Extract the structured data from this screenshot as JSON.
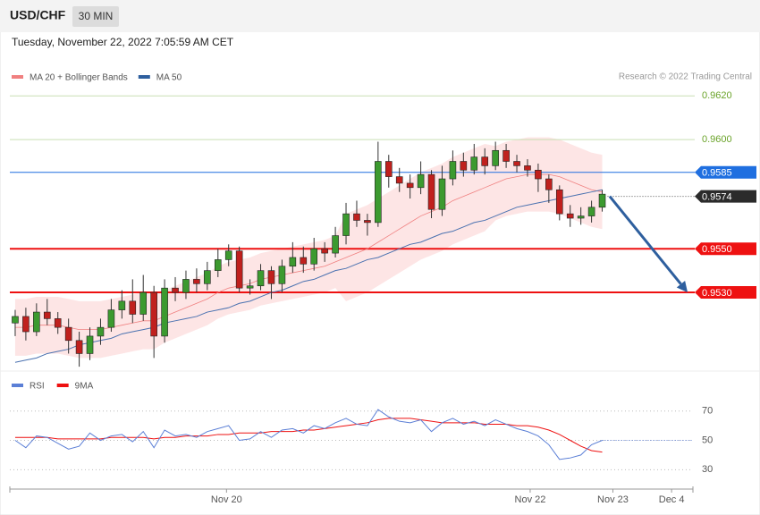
{
  "chart_data": {
    "type": "candlestick",
    "symbol": "USD/CHF",
    "interval": "30 MIN",
    "timestamp": "Tuesday, November 22, 2022 7:05:59 AM CET",
    "credit": "Research © 2022 Trading Central",
    "legend": [
      {
        "name": "MA 20 + Bollinger Bands",
        "color": "#f08080"
      },
      {
        "name": "MA 50",
        "color": "#2e5f9e"
      }
    ],
    "xlim": [
      -0.5,
      63.5
    ],
    "xticks": [
      {
        "value": 19.8,
        "label": "Nov 20"
      },
      {
        "value": 48.25,
        "label": "Nov 22"
      },
      {
        "value": 56,
        "label": "Nov 23"
      },
      {
        "value": 61.5,
        "label": "Dec 4"
      }
    ],
    "ylim": [
      0.9494,
      0.9625
    ],
    "up_color": "#3c9a2f",
    "down_color": "#c0201d",
    "open": [
      0.9516,
      0.9519,
      0.9512,
      0.9521,
      0.9518,
      0.9514,
      0.9508,
      0.9502,
      0.951,
      0.9514,
      0.9522,
      0.9526,
      0.952,
      0.953,
      0.951,
      0.9532,
      0.953,
      0.9536,
      0.9534,
      0.954,
      0.9545,
      0.9549,
      0.9532,
      0.9533,
      0.954,
      0.9534,
      0.9542,
      0.9546,
      0.9543,
      0.955,
      0.9548,
      0.9556,
      0.9566,
      0.9563,
      0.9562,
      0.959,
      0.9583,
      0.958,
      0.9578,
      0.9584,
      0.9568,
      0.9582,
      0.959,
      0.9586,
      0.9592,
      0.9588,
      0.9595,
      0.959,
      0.9588,
      0.9586,
      0.9582,
      0.9577,
      0.9566,
      0.9564,
      0.9565,
      0.9569
    ],
    "high": [
      0.9522,
      0.9523,
      0.9525,
      0.9527,
      0.9521,
      0.9518,
      0.9512,
      0.9514,
      0.9518,
      0.9527,
      0.9531,
      0.9536,
      0.9538,
      0.9533,
      0.9536,
      0.9537,
      0.954,
      0.9541,
      0.9544,
      0.955,
      0.9552,
      0.9551,
      0.9536,
      0.9543,
      0.9542,
      0.9545,
      0.9553,
      0.9551,
      0.9555,
      0.9553,
      0.956,
      0.9571,
      0.9572,
      0.9566,
      0.9599,
      0.9593,
      0.9587,
      0.9584,
      0.959,
      0.9586,
      0.9588,
      0.9595,
      0.9594,
      0.9598,
      0.9596,
      0.9599,
      0.9598,
      0.9593,
      0.9591,
      0.9589,
      0.9584,
      0.9579,
      0.957,
      0.9569,
      0.9572,
      0.9577
    ],
    "low": [
      0.951,
      0.9508,
      0.951,
      0.9515,
      0.9511,
      0.9502,
      0.9496,
      0.9499,
      0.9506,
      0.9512,
      0.9518,
      0.9516,
      0.9517,
      0.95,
      0.9507,
      0.9526,
      0.9527,
      0.953,
      0.9531,
      0.9537,
      0.9542,
      0.953,
      0.9529,
      0.9531,
      0.9527,
      0.953,
      0.9539,
      0.9539,
      0.954,
      0.9544,
      0.9546,
      0.9552,
      0.956,
      0.9556,
      0.956,
      0.9578,
      0.9576,
      0.9573,
      0.9575,
      0.9564,
      0.9565,
      0.9579,
      0.9583,
      0.9584,
      0.9584,
      0.9586,
      0.9587,
      0.9585,
      0.9583,
      0.9576,
      0.9571,
      0.9563,
      0.956,
      0.9561,
      0.9562,
      0.9567
    ],
    "close": [
      0.9519,
      0.9512,
      0.9521,
      0.9518,
      0.9514,
      0.9508,
      0.9502,
      0.951,
      0.9514,
      0.9522,
      0.9526,
      0.952,
      0.953,
      0.951,
      0.9532,
      0.953,
      0.9536,
      0.9534,
      0.954,
      0.9545,
      0.9549,
      0.9532,
      0.9533,
      0.954,
      0.9534,
      0.9542,
      0.9546,
      0.9543,
      0.955,
      0.9548,
      0.9556,
      0.9566,
      0.9563,
      0.9562,
      0.959,
      0.9583,
      0.958,
      0.9578,
      0.9584,
      0.9568,
      0.9582,
      0.959,
      0.9586,
      0.9592,
      0.9588,
      0.9595,
      0.959,
      0.9588,
      0.9586,
      0.9582,
      0.9577,
      0.9566,
      0.9564,
      0.9565,
      0.9569,
      0.9575
    ],
    "ma20": [
      0.9514,
      0.9514,
      0.9515,
      0.9515,
      0.9515,
      0.9514,
      0.9513,
      0.9513,
      0.9513,
      0.9514,
      0.9515,
      0.9516,
      0.9517,
      0.9517,
      0.9519,
      0.9521,
      0.9523,
      0.9525,
      0.9527,
      0.953,
      0.9532,
      0.9533,
      0.9534,
      0.9536,
      0.9537,
      0.9538,
      0.9539,
      0.954,
      0.9541,
      0.9542,
      0.9544,
      0.9546,
      0.9548,
      0.955,
      0.9553,
      0.9556,
      0.9559,
      0.9562,
      0.9565,
      0.9567,
      0.9569,
      0.9572,
      0.9574,
      0.9576,
      0.9578,
      0.958,
      0.9582,
      0.9583,
      0.9584,
      0.9584,
      0.9584,
      0.9583,
      0.9581,
      0.9579,
      0.9577,
      0.9576
    ],
    "band_upper": [
      0.9527,
      0.9527,
      0.9528,
      0.9528,
      0.9528,
      0.9527,
      0.9526,
      0.9526,
      0.9526,
      0.9527,
      0.9528,
      0.9529,
      0.953,
      0.953,
      0.9531,
      0.9533,
      0.9535,
      0.9537,
      0.9539,
      0.9542,
      0.9544,
      0.9545,
      0.9546,
      0.9548,
      0.9549,
      0.955,
      0.9551,
      0.9552,
      0.9553,
      0.9554,
      0.9556,
      0.9566,
      0.9568,
      0.957,
      0.9573,
      0.9576,
      0.9579,
      0.9582,
      0.9585,
      0.9587,
      0.9589,
      0.9592,
      0.9594,
      0.9596,
      0.9598,
      0.9597,
      0.9599,
      0.96,
      0.9601,
      0.9601,
      0.9601,
      0.96,
      0.9598,
      0.9596,
      0.9594,
      0.9593
    ],
    "band_lower": [
      0.9501,
      0.9501,
      0.9502,
      0.9502,
      0.9502,
      0.9501,
      0.95,
      0.95,
      0.95,
      0.9501,
      0.9502,
      0.9503,
      0.9504,
      0.9504,
      0.9507,
      0.9509,
      0.9511,
      0.9513,
      0.9515,
      0.9518,
      0.952,
      0.9521,
      0.9522,
      0.9524,
      0.9525,
      0.9526,
      0.9527,
      0.9528,
      0.9529,
      0.953,
      0.9532,
      0.9526,
      0.9528,
      0.953,
      0.9533,
      0.9536,
      0.9539,
      0.9542,
      0.9545,
      0.9547,
      0.9549,
      0.9552,
      0.9554,
      0.9556,
      0.9558,
      0.9563,
      0.9565,
      0.9566,
      0.9567,
      0.9567,
      0.9567,
      0.9566,
      0.9564,
      0.9562,
      0.956,
      0.9559
    ],
    "ma50": [
      0.9498,
      0.9499,
      0.95,
      0.9502,
      0.9503,
      0.9504,
      0.9506,
      0.9507,
      0.9508,
      0.9509,
      0.9511,
      0.9512,
      0.9513,
      0.9514,
      0.9516,
      0.9517,
      0.9518,
      0.9519,
      0.9521,
      0.9522,
      0.9523,
      0.9525,
      0.9526,
      0.9528,
      0.953,
      0.9531,
      0.9533,
      0.9535,
      0.9536,
      0.9538,
      0.954,
      0.9541,
      0.9543,
      0.9545,
      0.9546,
      0.9548,
      0.955,
      0.9552,
      0.9553,
      0.9555,
      0.9557,
      0.9558,
      0.956,
      0.9562,
      0.9563,
      0.9565,
      0.9567,
      0.9569,
      0.957,
      0.9571,
      0.9572,
      0.9573,
      0.9574,
      0.9575,
      0.9576,
      0.9577
    ],
    "levels": [
      {
        "value": 0.962,
        "label": "0.9620",
        "color": "#6aa329",
        "line_color": "#c9dfb4",
        "kind": "text"
      },
      {
        "value": 0.96,
        "label": "0.9600",
        "color": "#6aa329",
        "line_color": "#c9dfb4",
        "kind": "text"
      },
      {
        "value": 0.9585,
        "color": "#1f6fe0",
        "line_color": "#1f6fe0",
        "kind": "tag"
      },
      {
        "value": 0.9574,
        "color": "#2b2b2b",
        "line_color": "#555555",
        "kind": "tag",
        "dotted": true
      },
      {
        "value": 0.955,
        "label": "0.9550",
        "color": "#ee1111",
        "line_color": "#ee1111",
        "kind": "tag",
        "thick": true
      },
      {
        "value": 0.953,
        "label": "0.9530",
        "color": "#ee1111",
        "line_color": "#ee1111",
        "kind": "tag",
        "thick": true
      }
    ],
    "forecast_arrow": {
      "x": [
        55.7,
        63
      ],
      "y": [
        0.9574,
        0.953
      ],
      "color": "#2e5f9e"
    },
    "rsi_panel": {
      "legend": [
        {
          "name": "RSI",
          "color": "#5b7fd6"
        },
        {
          "name": "9MA",
          "color": "#ee1111"
        }
      ],
      "ylim": [
        18,
        82
      ],
      "yticks": [
        30,
        50,
        70
      ],
      "rsi": [
        50,
        45,
        53,
        52,
        48,
        44,
        46,
        55,
        50,
        53,
        54,
        49,
        56,
        45,
        57,
        53,
        54,
        52,
        56,
        58,
        60,
        50,
        51,
        56,
        52,
        57,
        58,
        55,
        60,
        58,
        62,
        65,
        61,
        60,
        71,
        66,
        63,
        62,
        64,
        56,
        62,
        65,
        61,
        63,
        60,
        64,
        61,
        58,
        56,
        53,
        47,
        37,
        38,
        40,
        47,
        50
      ],
      "rsi_ma": [
        52,
        52,
        52,
        52,
        51,
        51,
        51,
        51,
        51,
        52,
        52,
        52,
        52,
        51,
        52,
        52,
        53,
        53,
        53,
        54,
        54,
        55,
        55,
        55,
        56,
        56,
        56,
        57,
        57,
        58,
        59,
        60,
        61,
        62,
        64,
        65,
        65,
        65,
        64,
        63,
        62,
        62,
        62,
        62,
        61,
        61,
        61,
        60,
        60,
        59,
        57,
        54,
        50,
        46,
        43,
        42
      ]
    }
  }
}
